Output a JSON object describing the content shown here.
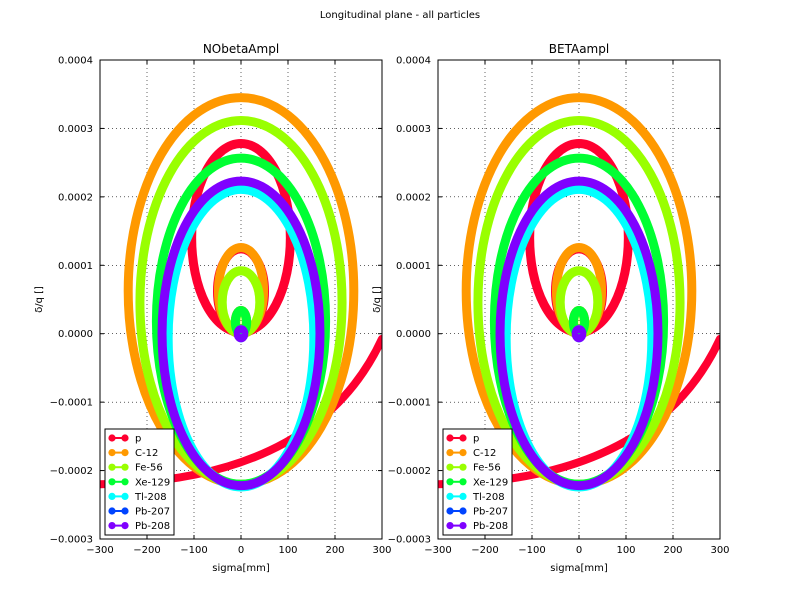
{
  "figure": {
    "suptitle": "Longitudinal plane - all particles"
  },
  "chart_data": [
    {
      "type": "scatter",
      "title": "NObetaAmpl",
      "xlabel": "sigma[mm]",
      "ylabel": "δ/q []",
      "xlim": [
        -300,
        300
      ],
      "ylim": [
        -0.0003,
        0.0004
      ],
      "xticks": [
        -300,
        -200,
        -100,
        0,
        100,
        200,
        300
      ],
      "xtick_labels": [
        "−300",
        "−200",
        "−100",
        "0",
        "100",
        "200",
        "300"
      ],
      "yticks": [
        -0.0003,
        -0.0002,
        -0.0001,
        0.0,
        0.0001,
        0.0002,
        0.0003,
        0.0004
      ],
      "ytick_labels": [
        "−0.0003",
        "−0.0002",
        "−0.0001",
        "0.0000",
        "0.0001",
        "0.0002",
        "0.0003",
        "0.0004"
      ],
      "grid": true,
      "legend_position": "lower-left",
      "series": [
        {
          "name": "p",
          "color": "#ff0030",
          "shapes": [
            {
              "cx": 0,
              "cy": 0.00014,
              "rx": 105,
              "ry": 0.000138
            },
            {
              "cx": 0,
              "cy": 6.2e-05,
              "rx": 50,
              "ry": 6.2e-05
            },
            {
              "cx": 0,
              "cy": 1.7e-05,
              "rx": 12,
              "ry": 1.7e-05
            },
            {
              "arc": "separatrix",
              "from": [
                -300,
                -0.00022
              ],
              "to": [
                300,
                -7.5e-06
              ]
            }
          ]
        },
        {
          "name": "C-12",
          "color": "#ff9900",
          "shapes": [
            {
              "cx": 0,
              "cy": 6.25e-05,
              "rx": 240,
              "ry": 0.0002825
            },
            {
              "cx": 0,
              "cy": 6.3e-05,
              "rx": 48,
              "ry": 6.3e-05
            },
            {
              "cx": 0,
              "cy": 1.7e-05,
              "rx": 12,
              "ry": 1.7e-05
            }
          ]
        },
        {
          "name": "Fe-56",
          "color": "#99ff00",
          "shapes": [
            {
              "cx": 0,
              "cy": 4.58e-05,
              "rx": 215,
              "ry": 0.0002658
            },
            {
              "cx": 0,
              "cy": 4.6e-05,
              "rx": 40,
              "ry": 4.6e-05
            },
            {
              "cx": 0,
              "cy": 1.7e-05,
              "rx": 11,
              "ry": 1.7e-05
            }
          ]
        },
        {
          "name": "Xe-129",
          "color": "#00ff33",
          "shapes": [
            {
              "cx": 0,
              "cy": 1.83e-05,
              "rx": 180,
              "ry": 0.0002383
            },
            {
              "cx": 0,
              "cy": 1.7e-05,
              "rx": 12,
              "ry": 1.7e-05
            }
          ]
        },
        {
          "name": "Tl-208",
          "color": "#00ffff",
          "shapes": [
            {
              "cx": 0,
              "cy": -6.5e-06,
              "rx": 155,
              "ry": 0.0002175
            },
            {
              "cx": 0,
              "cy": 0.0,
              "rx": 5,
              "ry": 6e-06
            }
          ]
        },
        {
          "name": "Pb-207",
          "color": "#0044ff",
          "shapes": [
            {
              "cx": 0,
              "cy": 0.0,
              "rx": 4,
              "ry": 4e-06
            }
          ]
        },
        {
          "name": "Pb-208",
          "color": "#7f00ff",
          "shapes": [
            {
              "cx": 0,
              "cy": 5e-07,
              "rx": 168,
              "ry": 0.0002225
            },
            {
              "cx": 0,
              "cy": 0.0,
              "rx": 6,
              "ry": 6e-06
            }
          ]
        }
      ]
    },
    {
      "type": "scatter",
      "title": "BETAampl",
      "xlabel": "sigma[mm]",
      "ylabel": "δ/q []",
      "xlim": [
        -300,
        300
      ],
      "ylim": [
        -0.0003,
        0.0004
      ],
      "xticks": [
        -300,
        -200,
        -100,
        0,
        100,
        200,
        300
      ],
      "xtick_labels": [
        "−300",
        "−200",
        "−100",
        "0",
        "100",
        "200",
        "300"
      ],
      "yticks": [
        -0.0003,
        -0.0002,
        -0.0001,
        0.0,
        0.0001,
        0.0002,
        0.0003,
        0.0004
      ],
      "ytick_labels": [
        "−0.0003",
        "−0.0002",
        "−0.0001",
        "0.0000",
        "0.0001",
        "0.0002",
        "0.0003",
        "0.0004"
      ],
      "grid": true,
      "legend_position": "lower-left",
      "series": [
        {
          "name": "p",
          "color": "#ff0030",
          "shapes": [
            {
              "cx": 0,
              "cy": 0.00014,
              "rx": 105,
              "ry": 0.000138
            },
            {
              "cx": 0,
              "cy": 6.2e-05,
              "rx": 50,
              "ry": 6.2e-05
            },
            {
              "cx": 0,
              "cy": 1.7e-05,
              "rx": 12,
              "ry": 1.7e-05
            },
            {
              "arc": "separatrix",
              "from": [
                -300,
                -0.00022
              ],
              "to": [
                300,
                -7.5e-06
              ]
            }
          ]
        },
        {
          "name": "C-12",
          "color": "#ff9900",
          "shapes": [
            {
              "cx": 0,
              "cy": 6.25e-05,
              "rx": 240,
              "ry": 0.0002825
            },
            {
              "cx": 0,
              "cy": 6.3e-05,
              "rx": 48,
              "ry": 6.3e-05
            },
            {
              "cx": 0,
              "cy": 1.7e-05,
              "rx": 12,
              "ry": 1.7e-05
            }
          ]
        },
        {
          "name": "Fe-56",
          "color": "#99ff00",
          "shapes": [
            {
              "cx": 0,
              "cy": 4.58e-05,
              "rx": 215,
              "ry": 0.0002658
            },
            {
              "cx": 0,
              "cy": 4.6e-05,
              "rx": 40,
              "ry": 4.6e-05
            },
            {
              "cx": 0,
              "cy": 1.7e-05,
              "rx": 11,
              "ry": 1.7e-05
            }
          ]
        },
        {
          "name": "Xe-129",
          "color": "#00ff33",
          "shapes": [
            {
              "cx": 0,
              "cy": 1.83e-05,
              "rx": 180,
              "ry": 0.0002383
            },
            {
              "cx": 0,
              "cy": 1.7e-05,
              "rx": 12,
              "ry": 1.7e-05
            }
          ]
        },
        {
          "name": "Tl-208",
          "color": "#00ffff",
          "shapes": [
            {
              "cx": 0,
              "cy": -6.5e-06,
              "rx": 155,
              "ry": 0.0002175
            },
            {
              "cx": 0,
              "cy": 0.0,
              "rx": 5,
              "ry": 6e-06
            }
          ]
        },
        {
          "name": "Pb-207",
          "color": "#0044ff",
          "shapes": [
            {
              "cx": 0,
              "cy": 0.0,
              "rx": 4,
              "ry": 4e-06
            }
          ]
        },
        {
          "name": "Pb-208",
          "color": "#7f00ff",
          "shapes": [
            {
              "cx": 0,
              "cy": 5e-07,
              "rx": 168,
              "ry": 0.0002225
            },
            {
              "cx": 0,
              "cy": 0.0,
              "rx": 6,
              "ry": 6e-06
            }
          ]
        }
      ]
    }
  ]
}
